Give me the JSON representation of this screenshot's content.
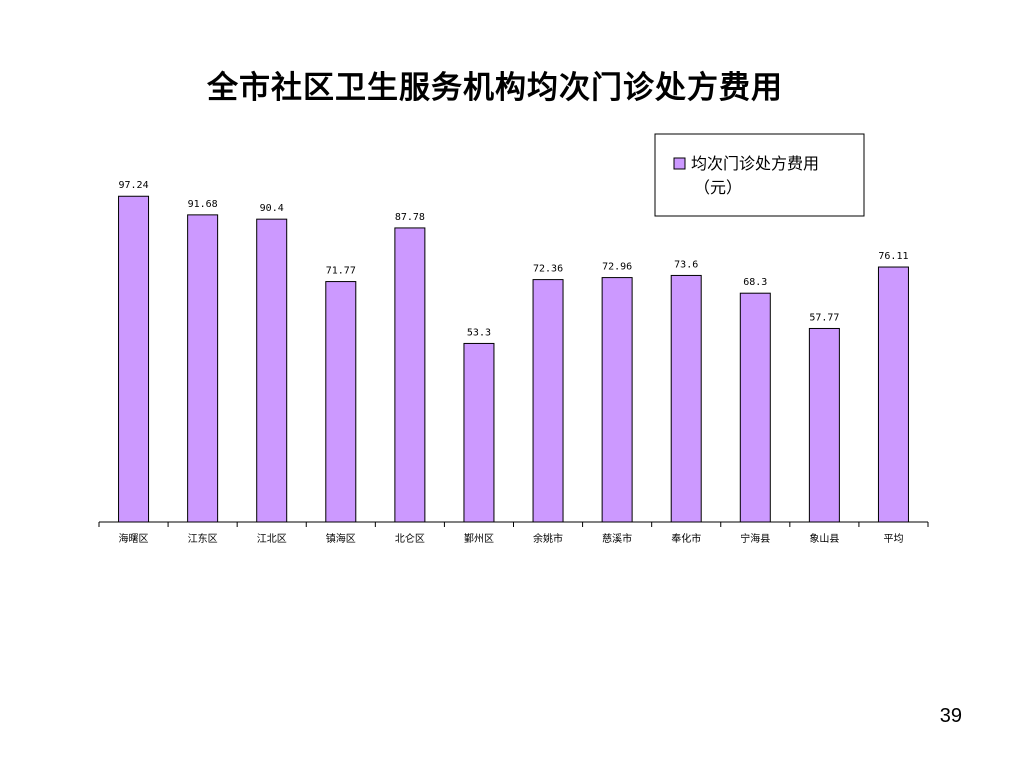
{
  "slide": {
    "page_number": "39"
  },
  "chart_data": {
    "type": "bar",
    "title": "全市社区卫生服务机构均次门诊处方费用",
    "categories": [
      "海曙区",
      "江东区",
      "江北区",
      "镇海区",
      "北仑区",
      "鄞州区",
      "余姚市",
      "慈溪市",
      "奉化市",
      "宁海县",
      "象山县",
      "平均"
    ],
    "series": [
      {
        "name": "均次门诊处方费用（元）",
        "values": [
          97.24,
          91.68,
          90.4,
          71.77,
          87.78,
          53.3,
          72.36,
          72.96,
          73.6,
          68.3,
          57.77,
          76.11
        ],
        "labels": [
          "97.24",
          "91.68",
          "90.4",
          "71.77",
          "87.78",
          "53.3",
          "72.36",
          "72.96",
          "73.6",
          "68.3",
          "57.77",
          "76.11"
        ]
      }
    ],
    "legend": {
      "line1": "均次门诊处方费用",
      "line2": "（元）",
      "placement": "top-right"
    },
    "ylim": [
      0,
      100
    ],
    "grid": false,
    "colors": {
      "bar_fill": "#cc99ff",
      "bar_stroke": "#000000"
    }
  }
}
